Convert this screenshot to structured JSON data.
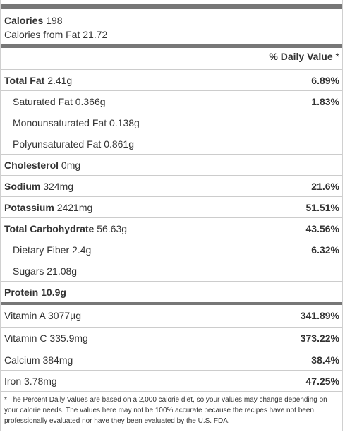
{
  "calories": {
    "label": "Calories",
    "value": "198",
    "from_fat_label": "Calories from Fat",
    "from_fat_value": "21.72"
  },
  "daily_value_header": {
    "label": "% Daily Value",
    "star": "*"
  },
  "rows": [
    {
      "name": "Total Fat",
      "amount": "2.41g",
      "pct": "6.89%"
    },
    {
      "name": "Saturated Fat",
      "amount": "0.366g",
      "pct": "1.83%"
    },
    {
      "name": "Monounsaturated Fat",
      "amount": "0.138g",
      "pct": ""
    },
    {
      "name": "Polyunsaturated Fat",
      "amount": "0.861g",
      "pct": ""
    },
    {
      "name": "Cholesterol",
      "amount": "0mg",
      "pct": ""
    },
    {
      "name": "Sodium",
      "amount": "324mg",
      "pct": "21.6%"
    },
    {
      "name": "Potassium",
      "amount": "2421mg",
      "pct": "51.51%"
    },
    {
      "name": "Total Carbohydrate",
      "amount": "56.63g",
      "pct": "43.56%"
    },
    {
      "name": "Dietary Fiber",
      "amount": "2.4g",
      "pct": "6.32%"
    },
    {
      "name": "Sugars",
      "amount": "21.08g",
      "pct": ""
    },
    {
      "name": "Protein",
      "amount": "10.9g",
      "pct": ""
    },
    {
      "name": "Vitamin A",
      "amount": "3077µg",
      "pct": "341.89%"
    },
    {
      "name": "Vitamin C",
      "amount": "335.9mg",
      "pct": "373.22%"
    },
    {
      "name": "Calcium",
      "amount": "384mg",
      "pct": "38.4%"
    },
    {
      "name": "Iron",
      "amount": "3.78mg",
      "pct": "47.25%"
    }
  ],
  "footnote": "* The Percent Daily Values are based on a 2,000 calorie diet, so your values may change depending on your calorie needs. The values here may not be 100% accurate because the recipes have not been professionally evaluated nor have they been evaluated by the U.S. FDA."
}
